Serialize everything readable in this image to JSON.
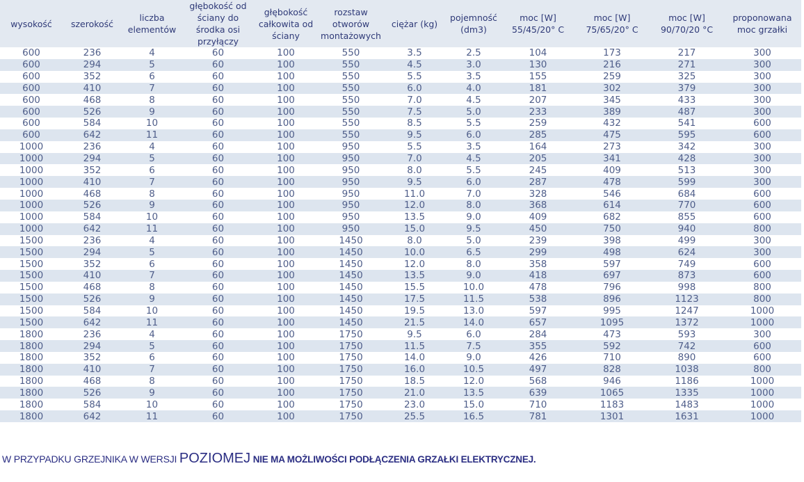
{
  "headers": [
    "wysokość",
    "szerokość",
    "liczba elementów",
    "głębokość od ściany do środka osi przyłączy",
    "głębokość całkowita od ściany",
    "rozstaw otworów montażowych",
    "ciężar (kg)",
    "pojemność (dm3)",
    "moc [W] 55/45/20° C",
    "moc [W] 75/65/20° C",
    "moc [W] 90/70/20 °C",
    "proponowana moc grzałki"
  ],
  "rows": [
    [
      "600",
      "236",
      "4",
      "60",
      "100",
      "550",
      "3.5",
      "2.5",
      "104",
      "173",
      "217",
      "300"
    ],
    [
      "600",
      "294",
      "5",
      "60",
      "100",
      "550",
      "4.5",
      "3.0",
      "130",
      "216",
      "271",
      "300"
    ],
    [
      "600",
      "352",
      "6",
      "60",
      "100",
      "550",
      "5.5",
      "3.5",
      "155",
      "259",
      "325",
      "300"
    ],
    [
      "600",
      "410",
      "7",
      "60",
      "100",
      "550",
      "6.0",
      "4.0",
      "181",
      "302",
      "379",
      "300"
    ],
    [
      "600",
      "468",
      "8",
      "60",
      "100",
      "550",
      "7.0",
      "4.5",
      "207",
      "345",
      "433",
      "300"
    ],
    [
      "600",
      "526",
      "9",
      "60",
      "100",
      "550",
      "7.5",
      "5.0",
      "233",
      "389",
      "487",
      "300"
    ],
    [
      "600",
      "584",
      "10",
      "60",
      "100",
      "550",
      "8.5",
      "5.5",
      "259",
      "432",
      "541",
      "600"
    ],
    [
      "600",
      "642",
      "11",
      "60",
      "100",
      "550",
      "9.5",
      "6.0",
      "285",
      "475",
      "595",
      "600"
    ],
    [
      "1000",
      "236",
      "4",
      "60",
      "100",
      "950",
      "5.5",
      "3.5",
      "164",
      "273",
      "342",
      "300"
    ],
    [
      "1000",
      "294",
      "5",
      "60",
      "100",
      "950",
      "7.0",
      "4.5",
      "205",
      "341",
      "428",
      "300"
    ],
    [
      "1000",
      "352",
      "6",
      "60",
      "100",
      "950",
      "8.0",
      "5.5",
      "245",
      "409",
      "513",
      "300"
    ],
    [
      "1000",
      "410",
      "7",
      "60",
      "100",
      "950",
      "9.5",
      "6.0",
      "287",
      "478",
      "599",
      "300"
    ],
    [
      "1000",
      "468",
      "8",
      "60",
      "100",
      "950",
      "11.0",
      "7.0",
      "328",
      "546",
      "684",
      "600"
    ],
    [
      "1000",
      "526",
      "9",
      "60",
      "100",
      "950",
      "12.0",
      "8.0",
      "368",
      "614",
      "770",
      "600"
    ],
    [
      "1000",
      "584",
      "10",
      "60",
      "100",
      "950",
      "13.5",
      "9.0",
      "409",
      "682",
      "855",
      "600"
    ],
    [
      "1000",
      "642",
      "11",
      "60",
      "100",
      "950",
      "15.0",
      "9.5",
      "450",
      "750",
      "940",
      "800"
    ],
    [
      "1500",
      "236",
      "4",
      "60",
      "100",
      "1450",
      "8.0",
      "5.0",
      "239",
      "398",
      "499",
      "300"
    ],
    [
      "1500",
      "294",
      "5",
      "60",
      "100",
      "1450",
      "10.0",
      "6.5",
      "299",
      "498",
      "624",
      "300"
    ],
    [
      "1500",
      "352",
      "6",
      "60",
      "100",
      "1450",
      "12.0",
      "8.0",
      "358",
      "597",
      "749",
      "600"
    ],
    [
      "1500",
      "410",
      "7",
      "60",
      "100",
      "1450",
      "13.5",
      "9.0",
      "418",
      "697",
      "873",
      "600"
    ],
    [
      "1500",
      "468",
      "8",
      "60",
      "100",
      "1450",
      "15.5",
      "10.0",
      "478",
      "796",
      "998",
      "800"
    ],
    [
      "1500",
      "526",
      "9",
      "60",
      "100",
      "1450",
      "17.5",
      "11.5",
      "538",
      "896",
      "1123",
      "800"
    ],
    [
      "1500",
      "584",
      "10",
      "60",
      "100",
      "1450",
      "19.5",
      "13.0",
      "597",
      "995",
      "1247",
      "1000"
    ],
    [
      "1500",
      "642",
      "11",
      "60",
      "100",
      "1450",
      "21.5",
      "14.0",
      "657",
      "1095",
      "1372",
      "1000"
    ],
    [
      "1800",
      "236",
      "4",
      "60",
      "100",
      "1750",
      "9.5",
      "6.0",
      "284",
      "473",
      "593",
      "300"
    ],
    [
      "1800",
      "294",
      "5",
      "60",
      "100",
      "1750",
      "11.5",
      "7.5",
      "355",
      "592",
      "742",
      "600"
    ],
    [
      "1800",
      "352",
      "6",
      "60",
      "100",
      "1750",
      "14.0",
      "9.0",
      "426",
      "710",
      "890",
      "600"
    ],
    [
      "1800",
      "410",
      "7",
      "60",
      "100",
      "1750",
      "16.0",
      "10.5",
      "497",
      "828",
      "1038",
      "800"
    ],
    [
      "1800",
      "468",
      "8",
      "60",
      "100",
      "1750",
      "18.5",
      "12.0",
      "568",
      "946",
      "1186",
      "1000"
    ],
    [
      "1800",
      "526",
      "9",
      "60",
      "100",
      "1750",
      "21.0",
      "13.5",
      "639",
      "1065",
      "1335",
      "1000"
    ],
    [
      "1800",
      "584",
      "10",
      "60",
      "100",
      "1750",
      "23.0",
      "15.0",
      "710",
      "1183",
      "1483",
      "1000"
    ],
    [
      "1800",
      "642",
      "11",
      "60",
      "100",
      "1750",
      "25.5",
      "16.5",
      "781",
      "1301",
      "1631",
      "1000"
    ]
  ],
  "note": {
    "part1": "W PRZYPADKU GRZEJNIKA W WERSJI ",
    "part2": "POZIOMEJ",
    "part3": " NIE MA MOŻLIWOŚCI PODŁĄCZENIA GRZAŁKI ELEKTRYCZNEJ."
  },
  "colors": {
    "header_bg": "#e3e9f1",
    "row_alt_bg": "#dde5ef",
    "header_text": "#2f3a78",
    "cell_text": "#4f5e8a",
    "note_text": "#2b2e83"
  }
}
